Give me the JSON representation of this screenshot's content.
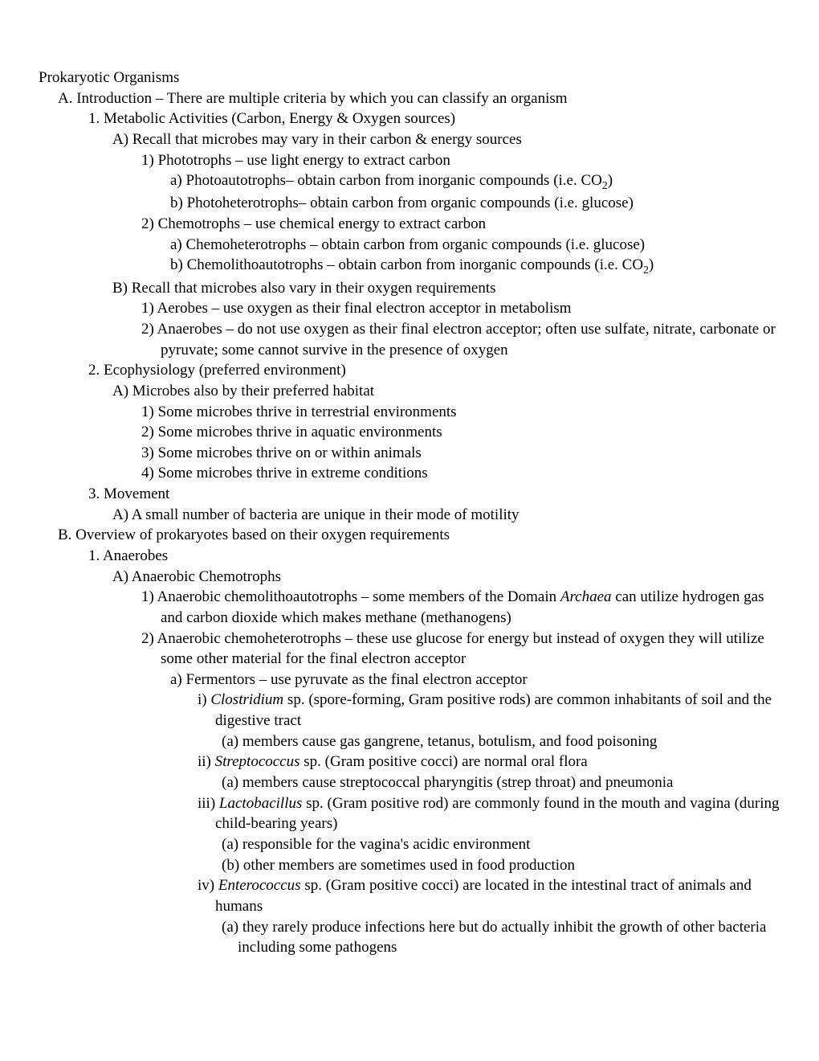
{
  "title": "Prokaryotic Organisms",
  "A": {
    "heading": "A. Introduction – There are multiple criteria by which you can classify an organism",
    "m1": {
      "heading": "1. Metabolic Activities (Carbon, Energy & Oxygen sources)",
      "A": {
        "heading": "A) Recall that microbes may vary in their carbon & energy sources",
        "p1": {
          "heading": "1) Phototrophs – use light energy to extract carbon",
          "a_pre": "a) Photoautotrophs– obtain carbon from inorganic compounds (i.e. CO",
          "a_sub": "2",
          "a_post": ")",
          "b": "b) Photoheterotrophs– obtain carbon from organic compounds (i.e. glucose)"
        },
        "p2": {
          "heading": "2) Chemotrophs – use chemical energy to extract carbon",
          "a": "a) Chemoheterotrophs – obtain carbon from organic compounds (i.e. glucose)",
          "b_pre": "b) Chemolithoautotrophs – obtain carbon from inorganic compounds (i.e. CO",
          "b_sub": "2",
          "b_post": ")"
        }
      },
      "B": {
        "heading": "B) Recall that microbes also vary in their oxygen requirements",
        "p1": "1) Aerobes – use oxygen as their final electron acceptor in metabolism",
        "p2": "2) Anaerobes – do not use oxygen as their final electron acceptor; often use sulfate, nitrate, carbonate or pyruvate; some cannot survive in the presence of oxygen"
      }
    },
    "m2": {
      "heading": "2. Ecophysiology (preferred environment)",
      "A": {
        "heading": "A) Microbes also by their preferred habitat",
        "p1": "1) Some microbes thrive in terrestrial environments",
        "p2": "2) Some microbes thrive in aquatic environments",
        "p3": "3) Some microbes thrive on or within animals",
        "p4": "4) Some microbes thrive in extreme conditions"
      }
    },
    "m3": {
      "heading": "3. Movement",
      "A": "A) A small number of bacteria are unique in their mode of motility"
    }
  },
  "B": {
    "heading": "B. Overview of prokaryotes based on their oxygen requirements",
    "m1": {
      "heading": "1. Anaerobes",
      "A": {
        "heading": "A) Anaerobic Chemotrophs",
        "p1_pre": "1) Anaerobic chemolithoautotrophs – some members of the Domain ",
        "p1_ital": "Archaea",
        "p1_post": " can utilize hydrogen gas and carbon dioxide which makes methane (methanogens)",
        "p2": {
          "heading": "2) Anaerobic chemoheterotrophs – these use glucose for energy but instead of oxygen they will utilize some other material for the final electron acceptor",
          "a": {
            "heading": "a) Fermentors – use pyruvate as the final electron acceptor",
            "i_pre": "i) ",
            "i_ital": "Clostridium",
            "i_post": " sp. (spore-forming, Gram positive rods) are common inhabitants of soil and the digestive tract",
            "i_a": "(a) members cause gas gangrene, tetanus, botulism, and food poisoning",
            "ii_pre": "ii) ",
            "ii_ital": "Streptococcus",
            "ii_post": " sp. (Gram positive cocci) are normal oral flora",
            "ii_a": "(a) members cause streptococcal pharyngitis (strep throat) and pneumonia",
            "iii_pre": "iii) ",
            "iii_ital": "Lactobacillus",
            "iii_post": " sp. (Gram positive rod) are commonly found in the mouth and vagina (during child-bearing years)",
            "iii_a": "(a) responsible for the vagina's acidic environment",
            "iii_b": "(b) other members are sometimes used in food production",
            "iv_pre": "iv) ",
            "iv_ital": "Enterococcus",
            "iv_post": " sp. (Gram positive cocci) are located in the intestinal tract of animals and humans",
            "iv_a": "(a) they rarely produce infections here but do actually inhibit the growth of other bacteria including some pathogens"
          }
        }
      }
    }
  }
}
